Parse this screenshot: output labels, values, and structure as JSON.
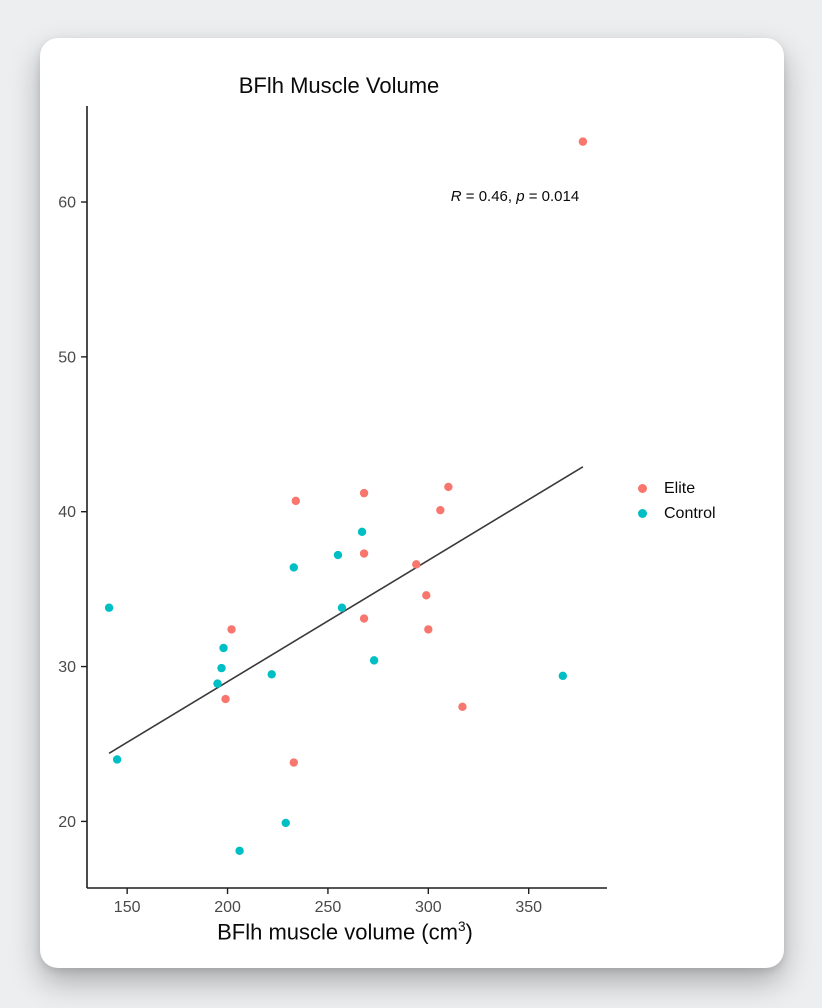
{
  "page": {
    "background": "#edeef0"
  },
  "card": {
    "background": "#ffffff"
  },
  "chart_data": {
    "type": "scatter",
    "title": "BFlh Muscle Volume",
    "xlabel": {
      "pre": "BFlh muscle volume (cm",
      "sup": "3",
      "post": ")"
    },
    "ylabel": "",
    "annotation": {
      "r_label": "R",
      "r_eq": " = 0.46, ",
      "p_label": "p",
      "p_eq": " = 0.014"
    },
    "xlim": [
      130,
      389
    ],
    "ylim": [
      15.7,
      66.2
    ],
    "xticks": [
      150,
      200,
      250,
      300,
      350
    ],
    "yticks": [
      20,
      30,
      40,
      50,
      60
    ],
    "grid": false,
    "legend_position": "right",
    "series": [
      {
        "name": "Elite",
        "color": "#F8766D",
        "points": [
          [
            377,
            63.9
          ],
          [
            234,
            40.7
          ],
          [
            268,
            41.2
          ],
          [
            310,
            41.6
          ],
          [
            306,
            40.1
          ],
          [
            294,
            36.6
          ],
          [
            268,
            37.3
          ],
          [
            299,
            34.6
          ],
          [
            268,
            33.1
          ],
          [
            202,
            32.4
          ],
          [
            300,
            32.4
          ],
          [
            199,
            27.9
          ],
          [
            233,
            23.8
          ],
          [
            317,
            27.4
          ]
        ]
      },
      {
        "name": "Control",
        "color": "#00BFC4",
        "points": [
          [
            141,
            33.8
          ],
          [
            267,
            38.7
          ],
          [
            255,
            37.2
          ],
          [
            233,
            36.4
          ],
          [
            257,
            33.8
          ],
          [
            198,
            31.2
          ],
          [
            197,
            29.9
          ],
          [
            195,
            28.9
          ],
          [
            222,
            29.5
          ],
          [
            273,
            30.4
          ],
          [
            367,
            29.4
          ],
          [
            145,
            24.0
          ],
          [
            229,
            19.9
          ],
          [
            206,
            18.1
          ]
        ]
      }
    ],
    "regression_line": {
      "x1": 141,
      "y1": 24.4,
      "x2": 377,
      "y2": 42.9,
      "color": "#3a3a3a"
    },
    "colors": {
      "axis": "#1f1f1f",
      "tick_label": "#4a4a4a"
    }
  }
}
